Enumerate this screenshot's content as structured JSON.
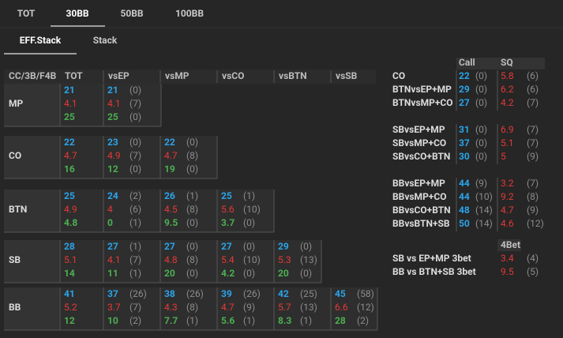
{
  "tabs": [
    "TOT",
    "30BB",
    "50BB",
    "100BB"
  ],
  "subtabs": [
    "EFF.Stack",
    "Stack"
  ],
  "grid": {
    "headers": [
      "CC/3B/F4B",
      "TOT",
      "vsEP",
      "vsMP",
      "vsCO",
      "vsBTN",
      "vsSB"
    ],
    "rows": [
      {
        "label": "MP",
        "tot": [
          "21",
          "4.1",
          "25"
        ],
        "cells": [
          [
            [
              "21",
              "(0)"
            ],
            [
              "4.1",
              "(7)"
            ],
            [
              "25",
              "(0)"
            ]
          ]
        ]
      },
      {
        "label": "CO",
        "tot": [
          "22",
          "4.7",
          "16"
        ],
        "cells": [
          [
            [
              "23",
              "(0)"
            ],
            [
              "4.9",
              "(7)"
            ],
            [
              "12",
              "(0)"
            ]
          ],
          [
            [
              "22",
              "(0)"
            ],
            [
              "4.7",
              "(8)"
            ],
            [
              "19",
              "(0)"
            ]
          ]
        ]
      },
      {
        "label": "BTN",
        "tot": [
          "25",
          "4.9",
          "4.8"
        ],
        "cells": [
          [
            [
              "24",
              "(2)"
            ],
            [
              "4",
              "(6)"
            ],
            [
              "0",
              "(1)"
            ]
          ],
          [
            [
              "26",
              "(1)"
            ],
            [
              "4.5",
              "(8)"
            ],
            [
              "9.5",
              "(0)"
            ]
          ],
          [
            [
              "25",
              "(1)"
            ],
            [
              "5.6",
              "(10)"
            ],
            [
              "3.7",
              "(0)"
            ]
          ]
        ]
      },
      {
        "label": "SB",
        "tot": [
          "28",
          "5.1",
          "14"
        ],
        "cells": [
          [
            [
              "27",
              "(1)"
            ],
            [
              "4.1",
              "(7)"
            ],
            [
              "11",
              "(1)"
            ]
          ],
          [
            [
              "27",
              "(0)"
            ],
            [
              "4.8",
              "(8)"
            ],
            [
              "20",
              "(0)"
            ]
          ],
          [
            [
              "27",
              "(0)"
            ],
            [
              "5.4",
              "(10)"
            ],
            [
              "4.2",
              "(0)"
            ]
          ],
          [
            [
              "29",
              "(0)"
            ],
            [
              "5.3",
              "(13)"
            ],
            [
              "20",
              "(0)"
            ]
          ]
        ]
      },
      {
        "label": "BB",
        "tot": [
          "41",
          "5.2",
          "12"
        ],
        "cells": [
          [
            [
              "37",
              "(26)"
            ],
            [
              "3.7",
              "(7)"
            ],
            [
              "10",
              "(2)"
            ]
          ],
          [
            [
              "38",
              "(26)"
            ],
            [
              "4.3",
              "(8)"
            ],
            [
              "7.7",
              "(1)"
            ]
          ],
          [
            [
              "39",
              "(26)"
            ],
            [
              "4.7",
              "(9)"
            ],
            [
              "5.6",
              "(1)"
            ]
          ],
          [
            [
              "42",
              "(25)"
            ],
            [
              "5.7",
              "(13)"
            ],
            [
              "8.3",
              "(1)"
            ]
          ],
          [
            [
              "45",
              "(58)"
            ],
            [
              "6.6",
              "(12)"
            ],
            [
              "28",
              "(2)"
            ]
          ]
        ]
      }
    ]
  },
  "side": {
    "headers": [
      "Call",
      "SQ"
    ],
    "groups": [
      [
        {
          "label": "CO",
          "call": [
            "22",
            "(0)"
          ],
          "sq": [
            "5.8",
            "(6)"
          ]
        },
        {
          "label": "BTNvsEP+MP",
          "call": [
            "29",
            "(0)"
          ],
          "sq": [
            "6.2",
            "(6)"
          ]
        },
        {
          "label": "BTNvsMP+CO",
          "call": [
            "27",
            "(0)"
          ],
          "sq": [
            "4.2",
            "(7)"
          ]
        }
      ],
      [
        {
          "label": "SBvsEP+MP",
          "call": [
            "31",
            "(0)"
          ],
          "sq": [
            "6.9",
            "(7)"
          ]
        },
        {
          "label": "SBvsMP+CO",
          "call": [
            "37",
            "(0)"
          ],
          "sq": [
            "5.1",
            "(7)"
          ]
        },
        {
          "label": "SBvsCO+BTN",
          "call": [
            "30",
            "(0)"
          ],
          "sq": [
            "5",
            "(9)"
          ]
        }
      ],
      [
        {
          "label": "BBvsEP+MP",
          "call": [
            "44",
            "(9)"
          ],
          "sq": [
            "3.2",
            "(7)"
          ]
        },
        {
          "label": "BBvsMP+CO",
          "call": [
            "44",
            "(10)"
          ],
          "sq": [
            "9.2",
            "(8)"
          ]
        },
        {
          "label": "BBvsCO+BTN",
          "call": [
            "48",
            "(14)"
          ],
          "sq": [
            "4.7",
            "(9)"
          ]
        },
        {
          "label": "BBvsBTN+SB",
          "call": [
            "50",
            "(14)"
          ],
          "sq": [
            "4.6",
            "(12)"
          ]
        }
      ]
    ],
    "fourbet": {
      "header": "4Bet",
      "rows": [
        {
          "label": "SB vs EP+MP 3bet",
          "value": [
            "3.4",
            "(4)"
          ]
        },
        {
          "label": "BB vs BTN+SB 3bet",
          "value": [
            "9.5",
            "(5)"
          ]
        }
      ]
    }
  }
}
